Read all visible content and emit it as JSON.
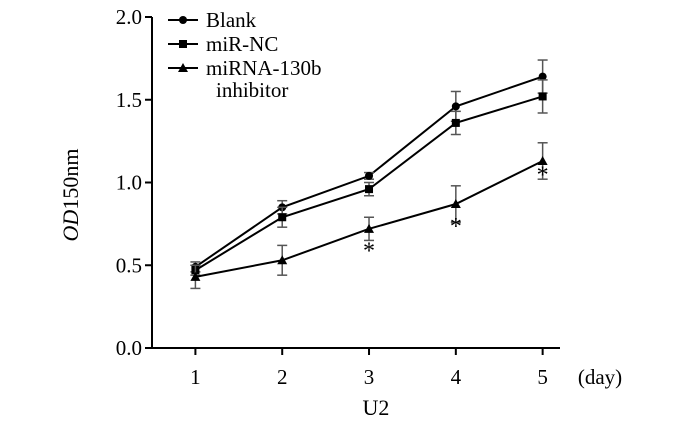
{
  "chart_data": {
    "type": "line",
    "title": "",
    "xlabel": "U2",
    "ylabel_italic": "OD",
    "ylabel_rest": "150nm",
    "x_unit": "(day)",
    "x": [
      1,
      2,
      3,
      4,
      5
    ],
    "xlim": [
      0.5,
      5.2
    ],
    "ylim": [
      0.0,
      2.0
    ],
    "y_ticks": [
      0.0,
      0.5,
      1.0,
      1.5,
      2.0
    ],
    "y_tick_labels": [
      "0.0",
      "0.5",
      "1.0",
      "1.5",
      "2.0"
    ],
    "x_tick_labels": [
      "1",
      "2",
      "3",
      "4",
      "5"
    ],
    "grid": false,
    "legend_position": "top-left",
    "series": [
      {
        "name": "Blank",
        "marker": "circle",
        "values": [
          0.49,
          0.85,
          1.04,
          1.46,
          1.64
        ],
        "errors": [
          0.03,
          0.04,
          0.02,
          0.09,
          0.1
        ]
      },
      {
        "name": "miR-NC",
        "marker": "square",
        "values": [
          0.47,
          0.79,
          0.96,
          1.36,
          1.52
        ],
        "errors": [
          0.03,
          0.06,
          0.04,
          0.07,
          0.1
        ]
      },
      {
        "name": "miRNA-130b",
        "name_line2": "inhibitor",
        "marker": "triangle",
        "values": [
          0.43,
          0.53,
          0.72,
          0.87,
          1.13
        ],
        "errors": [
          0.07,
          0.09,
          0.07,
          0.11,
          0.11
        ]
      }
    ],
    "annotations": [
      {
        "text": "*",
        "x": 3,
        "y": 0.6
      },
      {
        "text": "*",
        "x": 4,
        "y": 0.75
      },
      {
        "text": "*",
        "x": 5,
        "y": 1.06
      }
    ]
  }
}
